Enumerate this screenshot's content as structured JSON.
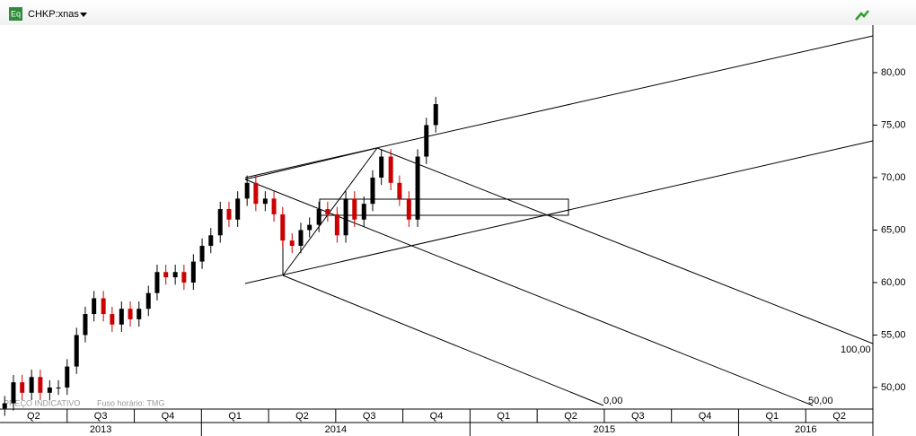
{
  "header": {
    "symbol": "CHKP:xnas",
    "icon": "Eq"
  },
  "footer": {
    "note": "PREÇO INDICATIVO",
    "timezone": "Fuso horário: TMG"
  },
  "pitchfork_labels": [
    "0,00",
    "50,00",
    "100,00"
  ],
  "chart_data": {
    "type": "candlestick",
    "x": [
      0.07,
      0.2,
      0.33,
      0.47,
      0.6,
      0.74,
      0.87,
      1.0,
      1.14,
      1.27,
      1.4,
      1.54,
      1.67,
      1.81,
      1.94,
      2.07,
      2.21,
      2.34,
      2.47,
      2.61,
      2.74,
      2.88,
      3.01,
      3.14,
      3.28,
      3.41,
      3.54,
      3.68,
      3.81,
      3.95,
      4.08,
      4.21,
      4.35,
      4.48,
      4.61,
      4.75,
      4.88,
      5.02,
      5.15,
      5.28,
      5.42,
      5.55,
      5.68,
      5.82,
      5.95,
      6.09,
      6.22,
      6.35,
      6.49
    ],
    "open": [
      48,
      48.5,
      50.5,
      49.5,
      51,
      49.5,
      50,
      50,
      52,
      55,
      57,
      58.5,
      57,
      56,
      57.5,
      56.5,
      57.5,
      59,
      61,
      60.5,
      61,
      60,
      62,
      63.5,
      64.5,
      67,
      66,
      68,
      69.5,
      67.5,
      68,
      66.5,
      64,
      63.5,
      65,
      65.5,
      67,
      66.5,
      64.5,
      68,
      66,
      67.5,
      70,
      72,
      69.5,
      68,
      66,
      72,
      75
    ],
    "high": [
      49.2,
      51.2,
      51.2,
      51.7,
      51.7,
      50.7,
      50.7,
      52.7,
      55.7,
      57.7,
      59.2,
      59.2,
      57.7,
      58.2,
      58.2,
      58.2,
      59.7,
      61.7,
      61.7,
      61.7,
      61.7,
      62.7,
      64.2,
      65.2,
      67.7,
      67.7,
      68.7,
      70.2,
      70.2,
      68.7,
      68.7,
      67.2,
      64.7,
      65.7,
      66.2,
      67.7,
      67.7,
      67.2,
      68.7,
      68.7,
      68.2,
      70.7,
      72.7,
      72.7,
      70.2,
      68.7,
      72.7,
      75.7,
      77.7
    ],
    "low": [
      47.3,
      47.8,
      48.8,
      48.8,
      48.8,
      48.8,
      49.3,
      49.3,
      51.3,
      54.3,
      56.3,
      56.3,
      55.3,
      55.3,
      55.8,
      55.8,
      56.8,
      58.3,
      59.8,
      59.8,
      59.3,
      59.3,
      61.3,
      62.8,
      63.8,
      65.3,
      65.3,
      67.3,
      66.8,
      66.8,
      65.8,
      63.3,
      62.8,
      62.8,
      64.3,
      64.8,
      65.8,
      63.8,
      63.8,
      65.3,
      65.3,
      66.8,
      69.3,
      68.8,
      67.3,
      65.3,
      65.3,
      71.3,
      74.3
    ],
    "close": [
      48.5,
      50.5,
      49.5,
      51,
      49.5,
      50,
      50,
      52,
      55,
      57,
      58.5,
      57,
      56,
      57.5,
      56.5,
      57.5,
      59,
      61,
      60.5,
      61,
      60,
      62,
      63.5,
      64.5,
      67,
      66,
      68,
      69.5,
      67.5,
      68,
      66.5,
      64,
      63.5,
      65,
      65.5,
      67,
      66.5,
      64.5,
      68,
      66,
      67.5,
      70,
      72,
      69.5,
      68,
      66,
      72,
      75,
      77
    ],
    "up_color": "#000000",
    "down_color": "#cc0000",
    "xlim": [
      0,
      13
    ],
    "ylim": [
      48.03,
      86.92
    ],
    "yticks": [
      {
        "value": 50,
        "label": "50,00"
      },
      {
        "value": 55,
        "label": "55,00"
      },
      {
        "value": 60,
        "label": "60,00"
      },
      {
        "value": 65,
        "label": "65,00"
      },
      {
        "value": 70,
        "label": "70,00"
      },
      {
        "value": 75,
        "label": "75,00"
      },
      {
        "value": 80,
        "label": "80,00"
      }
    ],
    "quarters": [
      "Q2",
      "Q3",
      "Q4",
      "Q1",
      "Q2",
      "Q3",
      "Q4",
      "Q1",
      "Q2",
      "Q3",
      "Q4",
      "Q1",
      "Q2"
    ],
    "years": [
      "2013",
      "2014",
      "2015",
      "2016"
    ]
  }
}
